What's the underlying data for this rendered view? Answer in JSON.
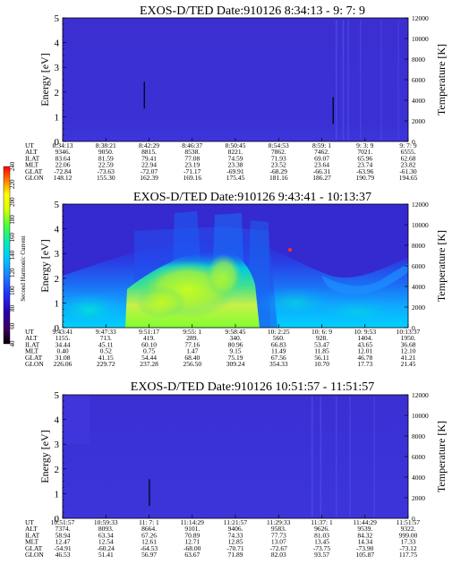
{
  "colors": {
    "background_low": "#3a2fcf",
    "stripe_color": "#5a55ee",
    "line_accent": "#000000",
    "colormap": [
      "#000000",
      "#3a0060",
      "#2a00b0",
      "#2030ff",
      "#1a7dff",
      "#00c8ff",
      "#00e6c8",
      "#40ff40",
      "#d8ff00",
      "#ffff00",
      "#ff8000",
      "#ff0000"
    ]
  },
  "colorbar": {
    "title": "Second Harmonic Current",
    "ticks": [
      "40",
      "60",
      "80",
      "100",
      "120",
      "140",
      "160",
      "180",
      "200",
      "220",
      "240"
    ]
  },
  "chart_data": [
    {
      "type": "heatmap",
      "title": "EXOS-D/TED   Date:910126   8:34:13 - 9: 7: 9",
      "ylabel": "Energy [eV]",
      "y2label": "Temperature [K]",
      "ylim": [
        0,
        5
      ],
      "y_ticks": [
        "0",
        "1",
        "2",
        "3",
        "4",
        "5"
      ],
      "y2lim": [
        0,
        12000
      ],
      "y2_ticks": [
        "0",
        "2000",
        "4000",
        "6000",
        "8000",
        "10000",
        "12000"
      ],
      "orbit_labels": [
        "UT",
        "ALT",
        "ILAT",
        "MLT",
        "GLAT",
        "GLON"
      ],
      "orbit_columns": [
        [
          "8:34:13",
          "9346.",
          "83.64",
          "22.06",
          "-72.84",
          "148.12"
        ],
        [
          "8:38:21",
          "9050.",
          "81.59",
          "22.59",
          "-73.63",
          "155.30"
        ],
        [
          "8:42:29",
          "8815.",
          "79.41",
          "22.94",
          "-72.07",
          "162.39"
        ],
        [
          "8:46:37",
          "8538.",
          "77.08",
          "23.19",
          "-71.17",
          "169.16"
        ],
        [
          "8:50:45",
          "8221.",
          "74.59",
          "23.38",
          "-69.91",
          "175.45"
        ],
        [
          "8:54:53",
          "7862.",
          "71.93",
          "23.52",
          "-68.29",
          "181.16"
        ],
        [
          "8:59: 1",
          "7462.",
          "69.07",
          "23.64",
          "-66.31",
          "186.27"
        ],
        [
          "9: 3: 9",
          "7021.",
          "65.96",
          "23.74",
          "-63.96",
          "190.79"
        ],
        [
          "9: 7: 9",
          "6555.",
          "62.68",
          "23.82",
          "-61.30",
          "194.65"
        ]
      ],
      "temperature_markers": [
        {
          "ut": "8:42:00",
          "temperature_K": 4500
        },
        {
          "ut": "9:00:00",
          "temperature_K": 3000
        }
      ]
    },
    {
      "type": "heatmap",
      "title": "EXOS-D/TED   Date:910126   9:43:41 - 10:13:37",
      "ylabel": "Energy [eV]",
      "y2label": "Temperature [K]",
      "ylim": [
        0,
        5
      ],
      "y_ticks": [
        "0",
        "1",
        "2",
        "3",
        "4",
        "5"
      ],
      "y2lim": [
        0,
        12000
      ],
      "y2_ticks": [
        "0",
        "2000",
        "4000",
        "6000",
        "8000",
        "10000",
        "12000"
      ],
      "orbit_labels": [
        "UT",
        "ALT",
        "ILAT",
        "MLT",
        "GLAT",
        "GLON"
      ],
      "orbit_columns": [
        [
          "9:43:41",
          "1155.",
          "34.44",
          "0.40",
          "31.08",
          "226.06"
        ],
        [
          "9:47:33",
          "713.",
          "45.11",
          "0.52",
          "41.15",
          "229.72"
        ],
        [
          "9:51:17",
          "419.",
          "60.10",
          "0.75",
          "54.44",
          "237.28"
        ],
        [
          "9:55: 1",
          "289.",
          "77.16",
          "1.47",
          "68.40",
          "256.50"
        ],
        [
          "9:58:45",
          "340.",
          "80.96",
          "9.15",
          "75.19",
          "309.24"
        ],
        [
          "10: 2:25",
          "560.",
          "66.83",
          "11.49",
          "67.56",
          "354.33"
        ],
        [
          "10: 6: 9",
          "928.",
          "53.47",
          "11.85",
          "56.11",
          "10.70"
        ],
        [
          "10: 9:53",
          "1404.",
          "43.65",
          "12.01",
          "46.78",
          "17.73"
        ],
        [
          "10:13:37",
          "1950.",
          "36.68",
          "12.10",
          "41.21",
          "21.45"
        ]
      ]
    },
    {
      "type": "heatmap",
      "title": "EXOS-D/TED   Date:910126   10:51:57 - 11:51:57",
      "ylabel": "Energy [eV]",
      "y2label": "Temperature [K]",
      "ylim": [
        0,
        5
      ],
      "y_ticks": [
        "0",
        "1",
        "2",
        "3",
        "4",
        "5"
      ],
      "y2lim": [
        0,
        12000
      ],
      "y2_ticks": [
        "0",
        "2000",
        "4000",
        "6000",
        "8000",
        "10000",
        "12000"
      ],
      "orbit_labels": [
        "UT",
        "ALT",
        "ILAT",
        "MLT",
        "GLAT",
        "GLON"
      ],
      "orbit_columns": [
        [
          "10:51:57",
          "7374.",
          "58.94",
          "12.47",
          "-54.91",
          "46.53"
        ],
        [
          "10:59:33",
          "8093.",
          "63.34",
          "12.54",
          "-60.24",
          "51.41"
        ],
        [
          "11: 7: 1",
          "8664.",
          "67.26",
          "12.61",
          "-64.53",
          "56.97"
        ],
        [
          "11:14:29",
          "9101.",
          "70.89",
          "12.71",
          "-68.00",
          "63.67"
        ],
        [
          "11:21:57",
          "9406.",
          "74.33",
          "12.85",
          "-70.71",
          "71.89"
        ],
        [
          "11:29:33",
          "9583.",
          "77.73",
          "13.07",
          "-72.67",
          "82.03"
        ],
        [
          "11:37: 1",
          "9626.",
          "81.03",
          "13.45",
          "-73.75",
          "93.57"
        ],
        [
          "11:44:29",
          "9539.",
          "84.32",
          "14.34",
          "-73.90",
          "105.87"
        ],
        [
          "11:51:57",
          "9322.",
          "999.00",
          "17.33",
          "-73.12",
          "117.75"
        ]
      ],
      "temperature_markers": [
        {
          "ut": "11: 7: 1",
          "temperature_K": 2500
        }
      ]
    }
  ]
}
